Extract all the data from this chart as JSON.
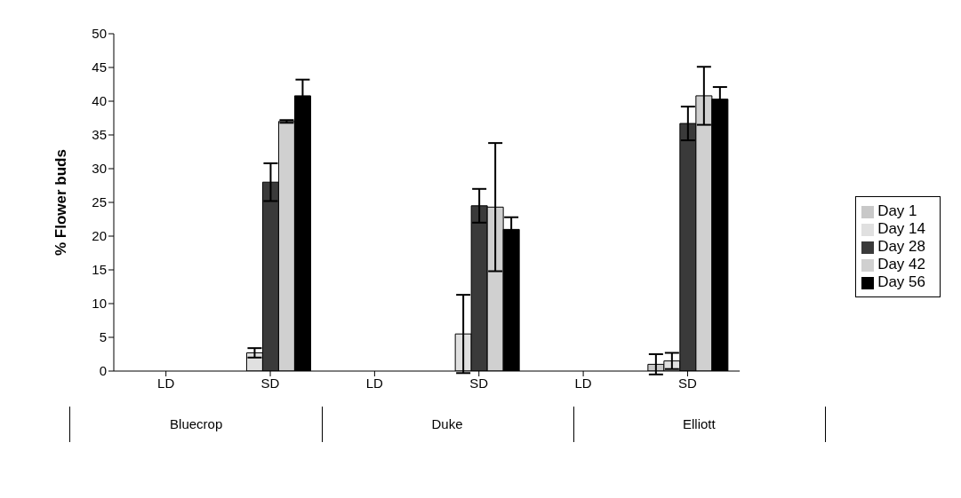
{
  "chart_data": {
    "type": "bar",
    "ylabel": "% Flower buds",
    "categories": [
      "LD",
      "SD",
      "LD",
      "SD",
      "LD",
      "SD"
    ],
    "annotations": [
      "Bluecrop",
      "Duke",
      "Elliott"
    ],
    "series": [
      {
        "name": "Day 1",
        "color": "#c8c8c8",
        "values": [
          0,
          0,
          0,
          0,
          0,
          1
        ],
        "errors": [
          null,
          null,
          null,
          null,
          null,
          1.5
        ]
      },
      {
        "name": "Day 14",
        "color": "#e0e0e0",
        "values": [
          0,
          2.7,
          0,
          5.5,
          0,
          1.5
        ],
        "errors": [
          null,
          0.7,
          null,
          5.8,
          null,
          1.2
        ]
      },
      {
        "name": "Day 28",
        "color": "#3a3a3a",
        "values": [
          0,
          28,
          0,
          24.5,
          0,
          36.7
        ],
        "errors": [
          null,
          2.8,
          null,
          2.5,
          null,
          2.5
        ]
      },
      {
        "name": "Day 42",
        "color": "#d0d0d0",
        "values": [
          0,
          37,
          0,
          24.3,
          0,
          40.8
        ],
        "errors": [
          null,
          0.2,
          null,
          9.5,
          null,
          4.3
        ]
      },
      {
        "name": "Day 56",
        "color": "#000000",
        "values": [
          0,
          40.8,
          0,
          21,
          0,
          40.3
        ],
        "errors": [
          null,
          2.4,
          null,
          1.8,
          null,
          1.8
        ]
      }
    ],
    "ylim": [
      0,
      50
    ],
    "yticks": [
      0,
      5,
      10,
      15,
      20,
      25,
      30,
      35,
      40,
      45,
      50
    ],
    "grid": false,
    "legend": "right"
  }
}
